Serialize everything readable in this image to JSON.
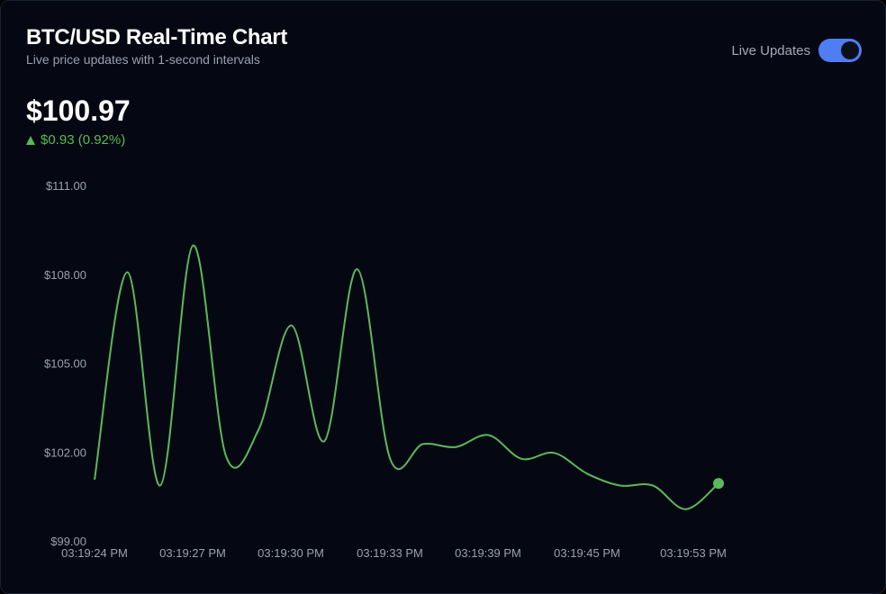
{
  "header": {
    "title": "BTC/USD Real-Time Chart",
    "subtitle": "Live price updates with 1-second intervals"
  },
  "live_toggle": {
    "label": "Live Updates",
    "on": true
  },
  "price": {
    "current": "$100.97",
    "change": "$0.93 (0.92%)",
    "direction": "up"
  },
  "colors": {
    "line": "#5cb85c",
    "accent": "#4e7ef2",
    "background": "#050813"
  },
  "chart_data": {
    "type": "line",
    "y_ticks": [
      "$111.00",
      "$108.00",
      "$105.00",
      "$102.00",
      "$99.00"
    ],
    "y_tick_values": [
      111,
      108,
      105,
      102,
      99
    ],
    "ylim": [
      99,
      111
    ],
    "x_ticks": [
      "03:19:24 PM",
      "03:19:27 PM",
      "03:19:30 PM",
      "03:19:33 PM",
      "03:19:39 PM",
      "03:19:45 PM",
      "03:19:53 PM"
    ],
    "grid": false,
    "series": [
      {
        "values": [
          101.1,
          108.1,
          100.9,
          109.0,
          101.9,
          102.8,
          106.3,
          102.4,
          108.2,
          101.8,
          102.3,
          102.2,
          102.6,
          101.8,
          102.0,
          101.3,
          100.9,
          100.9,
          100.1,
          100.97
        ]
      }
    ]
  }
}
